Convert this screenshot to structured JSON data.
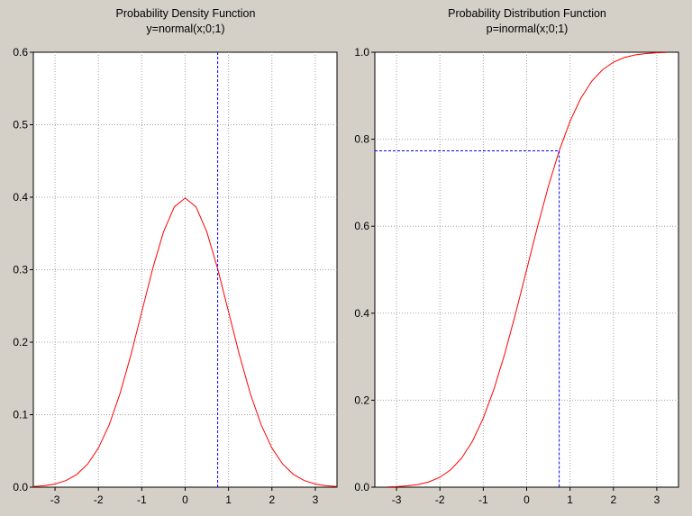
{
  "chart_data": [
    {
      "type": "line",
      "title": "Probability Density Function",
      "subtitle": "y=normal(x;0;1)",
      "xlabel": "",
      "ylabel": "",
      "xlim": [
        -3.5,
        3.5
      ],
      "ylim": [
        0,
        0.6
      ],
      "xticks": [
        -3,
        -2,
        -1,
        0,
        1,
        2,
        3
      ],
      "xtick_labels": [
        "-3",
        "-2",
        "-1",
        "0",
        "1",
        "2",
        "3"
      ],
      "yticks": [
        0,
        0.1,
        0.2,
        0.3,
        0.4,
        0.5,
        0.6
      ],
      "ytick_labels": [
        "0.0",
        "0.1",
        "0.2",
        "0.3",
        "0.4",
        "0.5",
        "0.6"
      ],
      "grid": true,
      "x": [
        -3.5,
        -3.25,
        -3,
        -2.75,
        -2.5,
        -2.25,
        -2,
        -1.75,
        -1.5,
        -1.25,
        -1,
        -0.75,
        -0.5,
        -0.25,
        0,
        0.25,
        0.5,
        0.75,
        1,
        1.25,
        1.5,
        1.75,
        2,
        2.25,
        2.5,
        2.75,
        3,
        3.25,
        3.5
      ],
      "series": [
        {
          "values": [
            0.0009,
            0.002,
            0.0044,
            0.0091,
            0.0175,
            0.0317,
            0.054,
            0.0863,
            0.1295,
            0.1826,
            0.242,
            0.3011,
            0.3521,
            0.3867,
            0.3989,
            0.3867,
            0.3521,
            0.3011,
            0.242,
            0.1826,
            0.1295,
            0.0863,
            0.054,
            0.0317,
            0.0175,
            0.0091,
            0.0044,
            0.002,
            0.0009
          ]
        }
      ],
      "marker": {
        "x": 0.75,
        "style": "vertical"
      },
      "colors": {
        "curve": "#ff0000",
        "marker": "#0000ff",
        "grid": "#a0a0a0",
        "plot_bg": "#ffffff",
        "page_bg": "#d4d0c8"
      }
    },
    {
      "type": "line",
      "title": "Probability Distribution Function",
      "subtitle": "p=inormal(x;0;1)",
      "xlabel": "",
      "ylabel": "",
      "xlim": [
        -3.5,
        3.5
      ],
      "ylim": [
        0,
        1
      ],
      "xticks": [
        -3,
        -2,
        -1,
        0,
        1,
        2,
        3
      ],
      "xtick_labels": [
        "-3",
        "-2",
        "-1",
        "0",
        "1",
        "2",
        "3"
      ],
      "yticks": [
        0,
        0.2,
        0.4,
        0.6,
        0.8,
        1.0
      ],
      "ytick_labels": [
        "0.0",
        "0.2",
        "0.4",
        "0.6",
        "0.8",
        "1.0"
      ],
      "grid": true,
      "x": [
        -3.2,
        -3,
        -2.75,
        -2.5,
        -2.25,
        -2,
        -1.75,
        -1.5,
        -1.25,
        -1,
        -0.75,
        -0.5,
        -0.25,
        0,
        0.25,
        0.5,
        0.75,
        1,
        1.25,
        1.5,
        1.75,
        2,
        2.25,
        2.5,
        2.75,
        3,
        3.2
      ],
      "series": [
        {
          "values": [
            0.0007,
            0.0013,
            0.003,
            0.0062,
            0.0122,
            0.0228,
            0.0401,
            0.0668,
            0.1056,
            0.1587,
            0.2266,
            0.3085,
            0.4013,
            0.5,
            0.5987,
            0.6915,
            0.7734,
            0.8413,
            0.8944,
            0.9332,
            0.9599,
            0.9772,
            0.9878,
            0.9938,
            0.997,
            0.9987,
            0.9993
          ]
        }
      ],
      "marker": {
        "x": 0.75,
        "y": 0.7734,
        "style": "crosshair"
      },
      "colors": {
        "curve": "#ff0000",
        "marker": "#0000ff",
        "grid": "#a0a0a0",
        "plot_bg": "#ffffff",
        "page_bg": "#d4d0c8"
      }
    }
  ]
}
